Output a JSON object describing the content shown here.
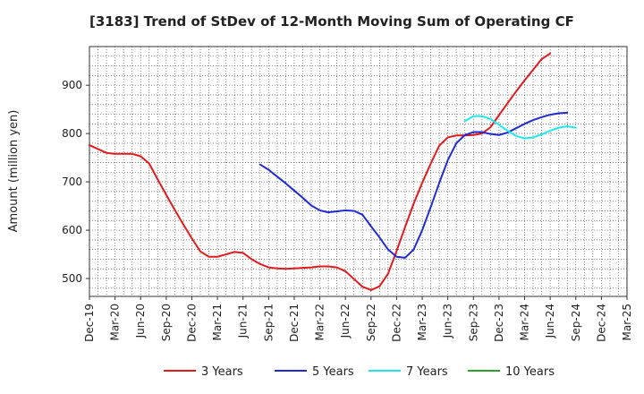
{
  "chart_data": {
    "type": "line",
    "title": "[3183]  Trend of StDev of 12-Month Moving Sum of Operating CF",
    "xlabel": "",
    "ylabel": "Amount (million yen)",
    "ylim": [
      463,
      980
    ],
    "y_ticks": [
      500,
      600,
      700,
      800,
      900
    ],
    "x_tick_labels": [
      "Dec-19",
      "Mar-20",
      "Jun-20",
      "Sep-20",
      "Dec-20",
      "Mar-21",
      "Jun-21",
      "Sep-21",
      "Dec-21",
      "Mar-22",
      "Jun-22",
      "Sep-22",
      "Dec-22",
      "Mar-23",
      "Jun-23",
      "Sep-23",
      "Dec-23",
      "Mar-24",
      "Jun-24",
      "Sep-24",
      "Dec-24",
      "Mar-25"
    ],
    "x_index_range": [
      0,
      63
    ],
    "grid": true,
    "legend_placement": "bottom",
    "series": [
      {
        "name": "3 Years",
        "color": "#e31a1c",
        "x_index": [
          0,
          1,
          2,
          3,
          4,
          5,
          6,
          7,
          8,
          9,
          10,
          11,
          12,
          13,
          14,
          15,
          16,
          17,
          18,
          19,
          20,
          21,
          22,
          23,
          24,
          25,
          26,
          27,
          28,
          29,
          30,
          31,
          32,
          33,
          34,
          35,
          36,
          37,
          38,
          39,
          40,
          41,
          42,
          43,
          44,
          45,
          46,
          47,
          48,
          49,
          50,
          51,
          52,
          53,
          54,
          55,
          56,
          57
        ],
        "values": [
          776,
          768,
          760,
          758,
          758,
          758,
          753,
          738,
          705,
          673,
          642,
          612,
          583,
          556,
          545,
          545,
          550,
          555,
          553,
          540,
          530,
          523,
          521,
          520,
          521,
          522,
          523,
          525,
          525,
          523,
          515,
          499,
          483,
          476,
          484,
          510,
          557,
          607,
          655,
          698,
          738,
          775,
          792,
          796,
          796,
          797,
          800,
          813,
          838,
          863,
          887,
          910,
          932,
          954,
          966,
          null,
          null,
          null
        ]
      },
      {
        "name": "5 Years",
        "color": "#1f2bd1",
        "x_index": [
          20,
          21,
          22,
          23,
          24,
          25,
          26,
          27,
          28,
          29,
          30,
          31,
          32,
          33,
          34,
          35,
          36,
          37,
          38,
          39,
          40,
          41,
          42,
          43,
          44,
          45,
          46,
          47,
          48,
          49,
          50,
          51,
          52,
          53,
          54,
          55,
          56,
          57
        ],
        "values": [
          736,
          725,
          711,
          697,
          682,
          667,
          651,
          641,
          637,
          639,
          641,
          640,
          632,
          608,
          585,
          560,
          545,
          543,
          560,
          600,
          648,
          698,
          745,
          780,
          797,
          803,
          803,
          799,
          797,
          802,
          811,
          820,
          828,
          834,
          839,
          842,
          843,
          null
        ]
      },
      {
        "name": "7 Years",
        "color": "#1ee8ee",
        "x_index": [
          44,
          45,
          46,
          47,
          48,
          49,
          50,
          51,
          52,
          53,
          54,
          55,
          56,
          57
        ],
        "values": [
          826,
          836,
          836,
          830,
          818,
          806,
          795,
          790,
          792,
          798,
          806,
          812,
          815,
          812
        ]
      },
      {
        "name": "10 Years",
        "color": "#2ca02c",
        "x_index": [],
        "values": []
      }
    ]
  }
}
